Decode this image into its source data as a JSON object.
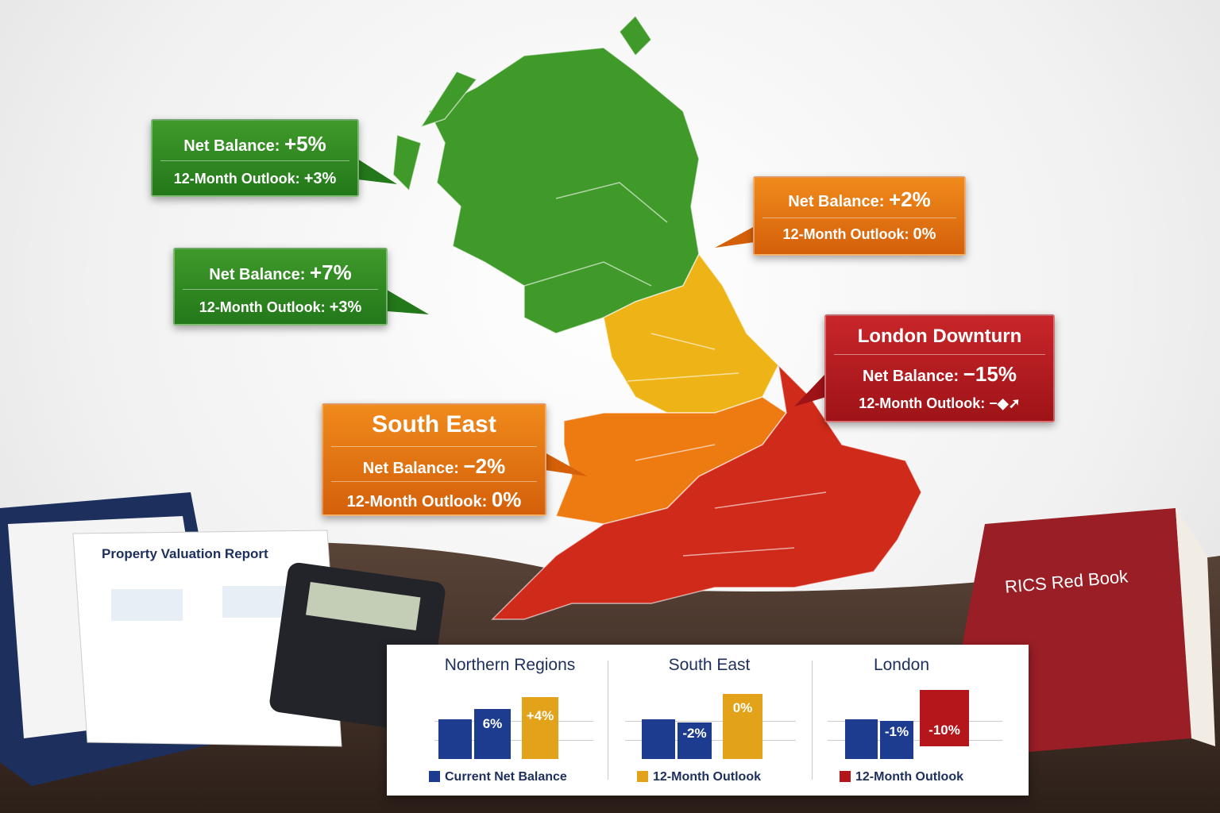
{
  "callouts": [
    {
      "net_label": "Net Balance:",
      "net_value": "+5%",
      "outlook_label": "12-Month Outlook:",
      "outlook_value": "+3%"
    },
    {
      "net_label": "Net Balance:",
      "net_value": "+7%",
      "outlook_label": "12-Month Outlook:",
      "outlook_value": "+3%"
    },
    {
      "net_label": "Net Balance:",
      "net_value": "+2%",
      "outlook_label": "12-Month Outlook:",
      "outlook_value": "0%"
    },
    {
      "title": "London Downturn",
      "net_label": "Net Balance:",
      "net_value": "−15%",
      "outlook_label": "12-Month Outlook:"
    },
    {
      "title": "South East",
      "net_label": "Net Balance:",
      "net_value": "−2%",
      "outlook_label": "12-Month Outlook:",
      "outlook_value": "0%"
    }
  ],
  "report": {
    "title": "Property Valuation Report"
  },
  "book": {
    "title": "RICS Red Book"
  },
  "panel": {
    "sections": [
      {
        "title": "Northern Regions",
        "bar_labels": [
          "6%",
          "+4%"
        ],
        "legend": "Current Net Balance"
      },
      {
        "title": "South East",
        "bar_labels": [
          "-2%",
          "0%"
        ],
        "legend": "12-Month Outlook"
      },
      {
        "title": "London",
        "bar_labels": [
          "-1%",
          "-10%"
        ],
        "legend": "12-Month Outlook"
      }
    ]
  }
}
